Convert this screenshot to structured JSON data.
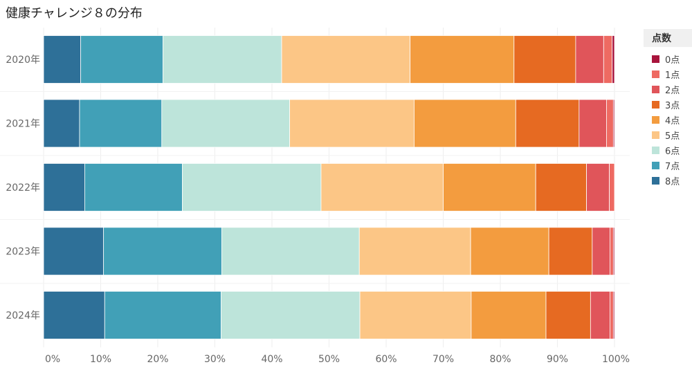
{
  "chart_data": {
    "type": "bar",
    "orientation": "horizontal",
    "stacked": "100%",
    "title": "健康チャレンジ８の分布",
    "categories": [
      "2020年",
      "2021年",
      "2022年",
      "2023年",
      "2024年"
    ],
    "xlim": [
      0,
      100
    ],
    "x_ticks": [
      "0%",
      "10%",
      "20%",
      "30%",
      "40%",
      "50%",
      "60%",
      "70%",
      "80%",
      "90%",
      "100%"
    ],
    "grid": true,
    "legend": {
      "title": "点数",
      "position": "right"
    },
    "series": [
      {
        "name": "8点",
        "color": "#2e7098",
        "values": [
          6.5,
          6.3,
          7.2,
          10.5,
          10.7
        ]
      },
      {
        "name": "7点",
        "color": "#41a0b7",
        "values": [
          14.4,
          14.4,
          17.1,
          20.7,
          20.4
        ]
      },
      {
        "name": "6点",
        "color": "#bde4da",
        "values": [
          20.8,
          22.4,
          24.3,
          24.1,
          24.3
        ]
      },
      {
        "name": "5点",
        "color": "#fcc686",
        "values": [
          22.5,
          21.8,
          21.4,
          19.5,
          19.5
        ]
      },
      {
        "name": "4点",
        "color": "#f39c3f",
        "values": [
          18.2,
          17.8,
          16.2,
          13.7,
          13.1
        ]
      },
      {
        "name": "3点",
        "color": "#e66a22",
        "values": [
          10.8,
          11.1,
          8.9,
          7.6,
          7.8
        ]
      },
      {
        "name": "2点",
        "color": "#e0555a",
        "values": [
          4.9,
          4.8,
          4.0,
          3.1,
          3.4
        ]
      },
      {
        "name": "1点",
        "color": "#ee6a62",
        "values": [
          1.5,
          1.2,
          0.9,
          0.6,
          0.6
        ]
      },
      {
        "name": "0点",
        "color": "#a8143c",
        "values": [
          0.4,
          0.2,
          0.0,
          0.2,
          0.2
        ]
      }
    ]
  }
}
